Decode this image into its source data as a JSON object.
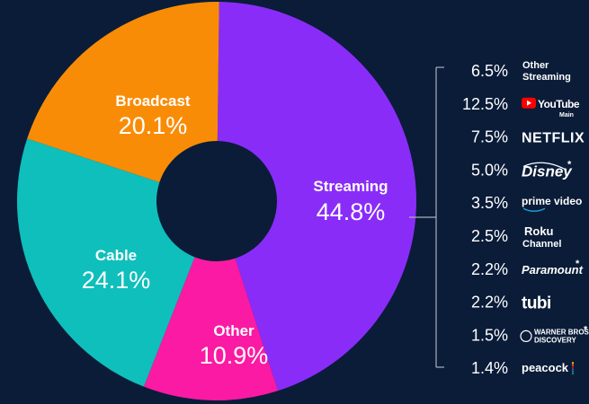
{
  "colors": {
    "background": "#0a1c38",
    "streaming": "#8a2cf8",
    "broadcast": "#f98c07",
    "cable": "#0fbfbc",
    "other": "#fb1aa3",
    "bracket": "#a9b0bc"
  },
  "chart_data": {
    "type": "pie",
    "segments": [
      {
        "name": "Streaming",
        "value": 44.8,
        "label": "44.8%",
        "color": "#8a2cf8"
      },
      {
        "name": "Other",
        "value": 10.9,
        "label": "10.9%",
        "color": "#fb1aa3"
      },
      {
        "name": "Cable",
        "value": 24.1,
        "label": "24.1%",
        "color": "#0fbfbc"
      },
      {
        "name": "Broadcast",
        "value": 20.1,
        "label": "20.1%",
        "color": "#f98c07"
      }
    ],
    "streaming_breakdown": [
      {
        "value": 6.5,
        "label": "6.5%",
        "name": "Other Streaming",
        "logo": "other-streaming"
      },
      {
        "value": 12.5,
        "label": "12.5%",
        "name": "YouTube",
        "sub": "Main",
        "logo": "youtube"
      },
      {
        "value": 7.5,
        "label": "7.5%",
        "name": "NETFLIX",
        "logo": "netflix"
      },
      {
        "value": 5.0,
        "label": "5.0%",
        "name": "Disney",
        "star": "*",
        "logo": "disney"
      },
      {
        "value": 3.5,
        "label": "3.5%",
        "name": "prime video",
        "logo": "prime-video"
      },
      {
        "value": 2.5,
        "label": "2.5%",
        "name": "Roku",
        "sub": "Channel",
        "logo": "roku"
      },
      {
        "value": 2.2,
        "label": "2.2%",
        "name": "Paramount",
        "star": "*",
        "logo": "paramount"
      },
      {
        "value": 2.2,
        "label": "2.2%",
        "name": "tubi",
        "logo": "tubi"
      },
      {
        "value": 1.5,
        "label": "1.5%",
        "name": "WARNER BROS.",
        "sub": "DISCOVERY",
        "star": "*",
        "logo": "warner-bros-discovery"
      },
      {
        "value": 1.4,
        "label": "1.4%",
        "name": "peacock",
        "logo": "peacock"
      }
    ]
  }
}
